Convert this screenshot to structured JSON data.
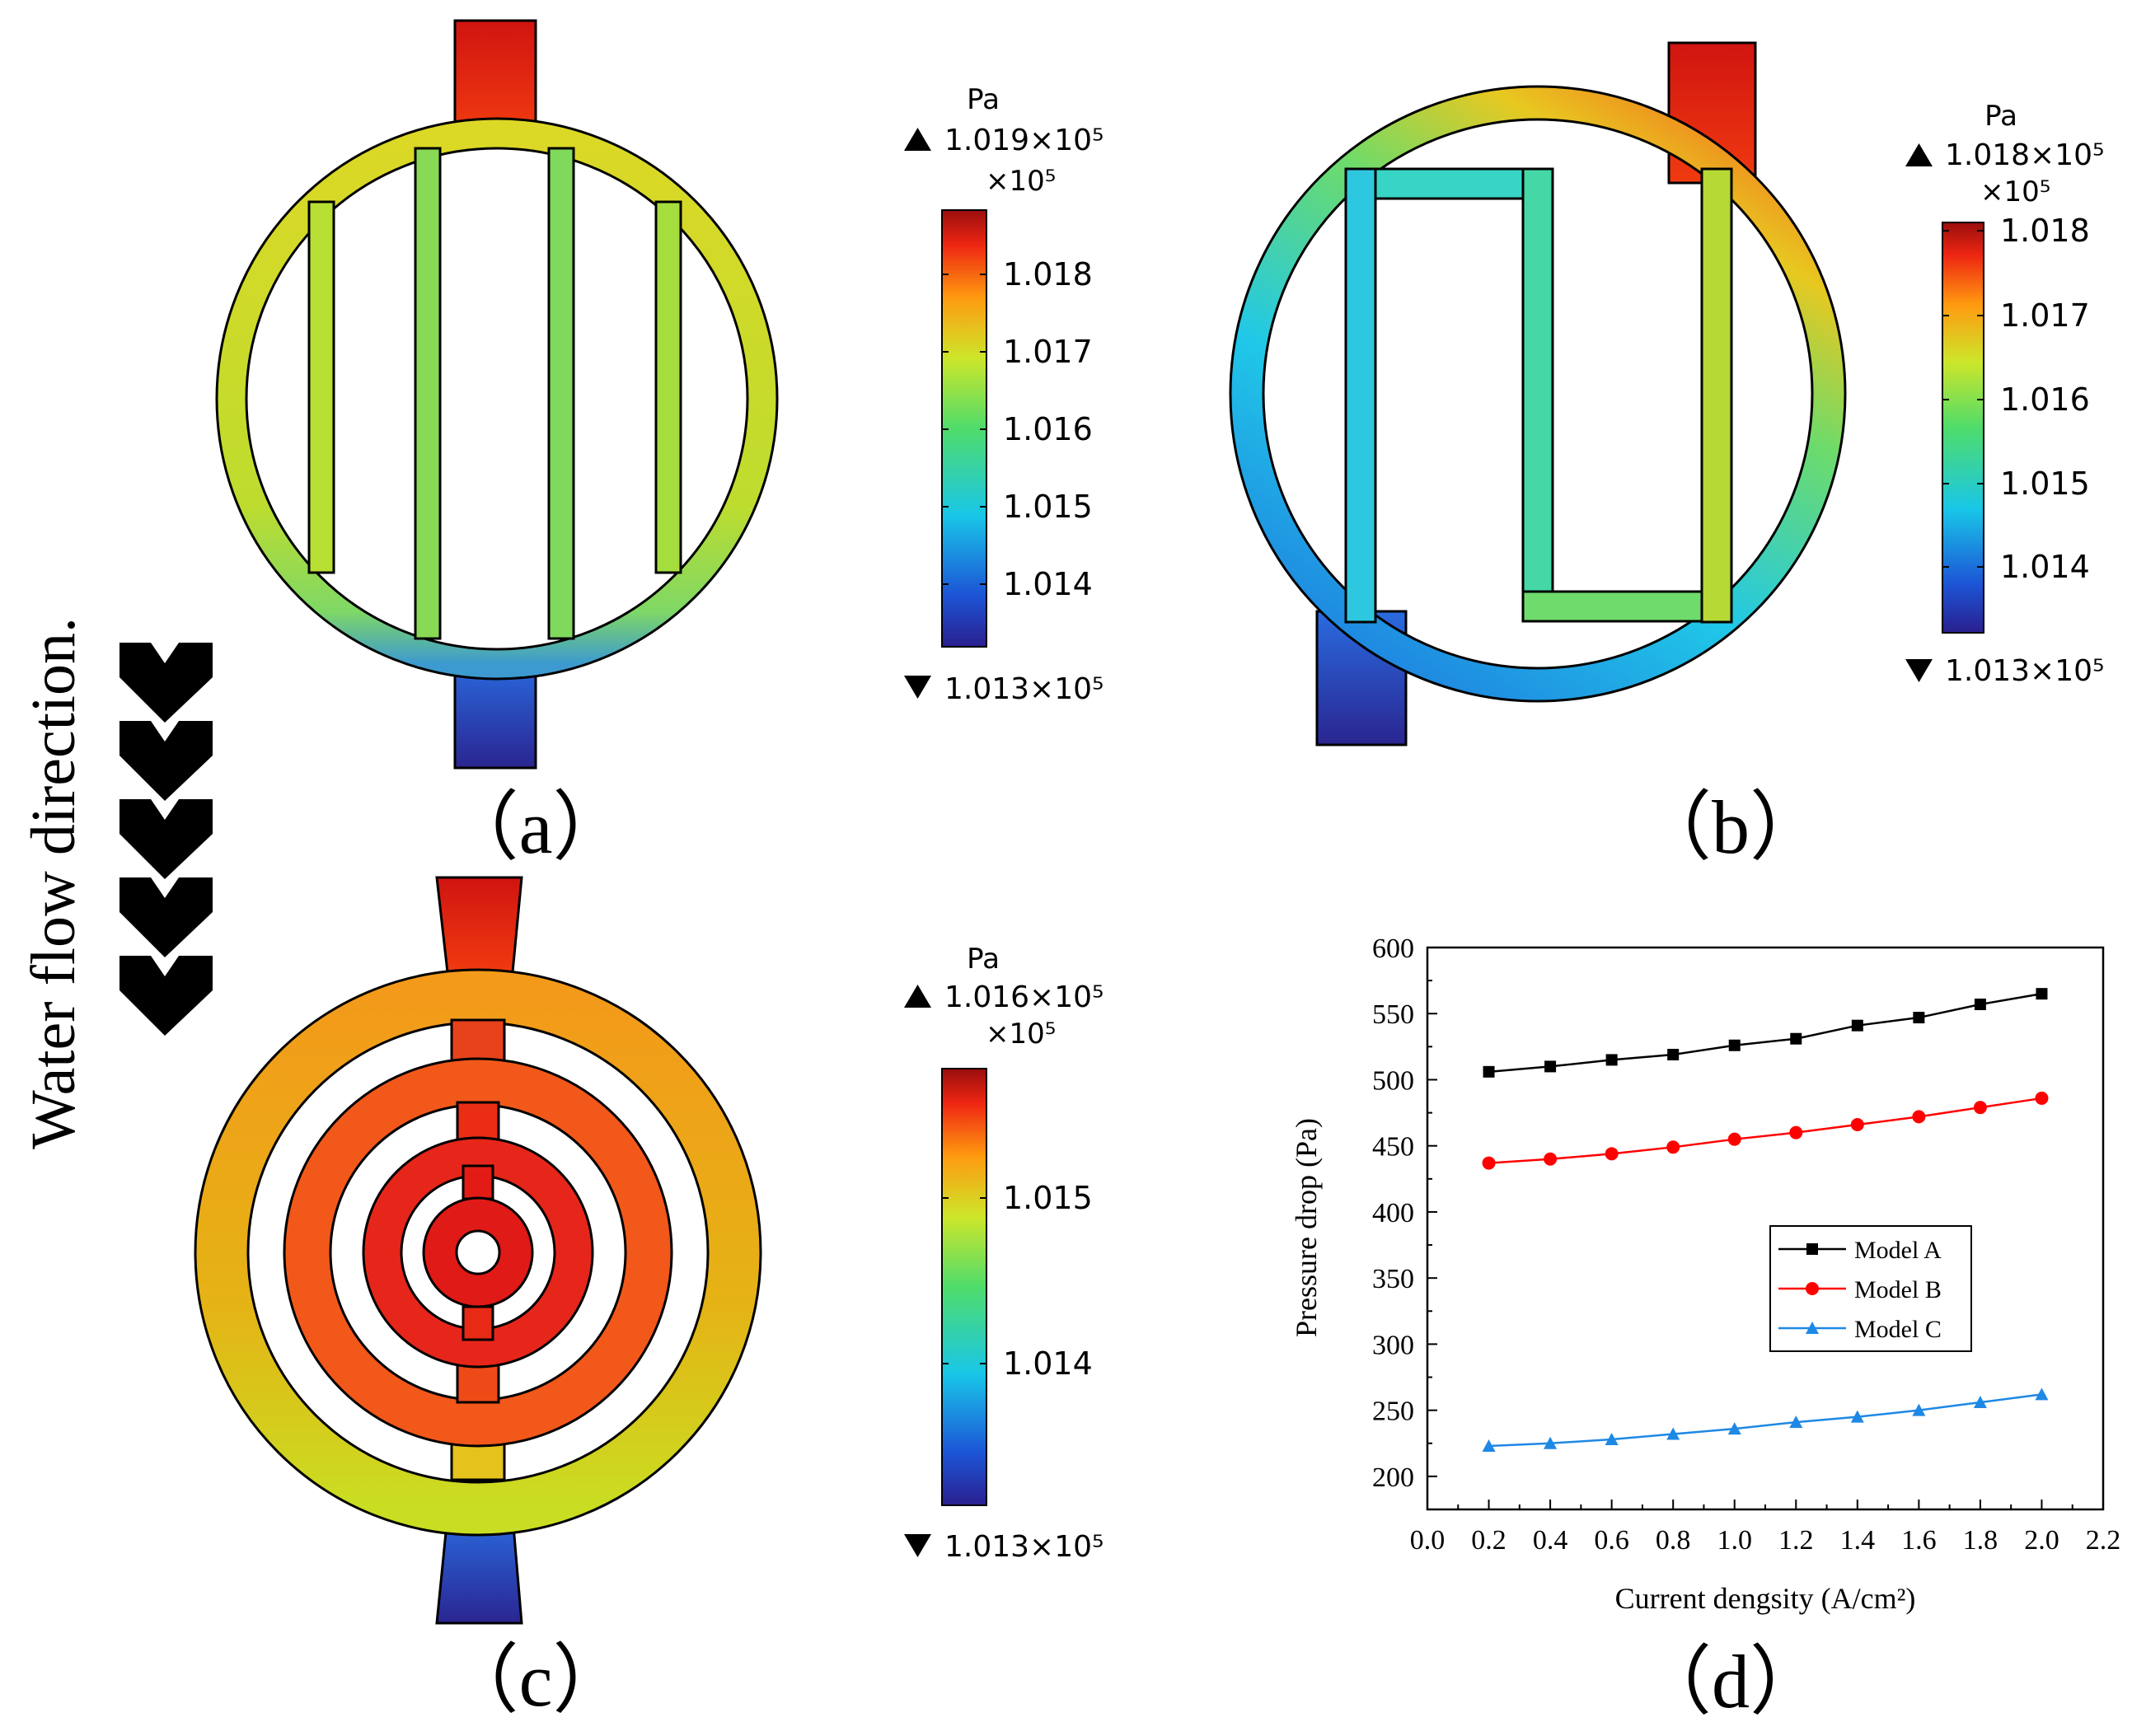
{
  "side_label": "Water flow direction.",
  "panels": {
    "a": {
      "label": "（a）",
      "legend": {
        "unit": "Pa",
        "max": "1.019×10⁵",
        "scale": "×10⁵",
        "ticks": [
          "1.018",
          "1.017",
          "1.016",
          "1.015",
          "1.014"
        ],
        "min": "1.013×10⁵"
      }
    },
    "b": {
      "label": "（b）",
      "legend": {
        "unit": "Pa",
        "max": "1.018×10⁵",
        "scale": "×10⁵",
        "ticks": [
          "1.018",
          "1.017",
          "1.016",
          "1.015",
          "1.014"
        ],
        "min": "1.013×10⁵"
      }
    },
    "c": {
      "label": "（c）",
      "legend": {
        "unit": "Pa",
        "max": "1.016×10⁵",
        "scale": "×10⁵",
        "ticks": [
          "1.015",
          "1.014"
        ],
        "min": "1.013×10⁵"
      }
    },
    "d": {
      "label": "（d）"
    }
  },
  "chart_data": {
    "type": "line",
    "title": "",
    "xlabel": "Current dengsity (A/cm²)",
    "ylabel": "Pressure drop (Pa)",
    "xlim": [
      0.0,
      2.2
    ],
    "ylim": [
      175,
      600
    ],
    "xticks": [
      "0.0",
      "0.2",
      "0.4",
      "0.6",
      "0.8",
      "1.0",
      "1.2",
      "1.4",
      "1.6",
      "1.8",
      "2.0",
      "2.2"
    ],
    "yticks": [
      "200",
      "250",
      "300",
      "350",
      "400",
      "450",
      "500",
      "550",
      "600"
    ],
    "x": [
      0.2,
      0.4,
      0.6,
      0.8,
      1.0,
      1.2,
      1.4,
      1.6,
      1.8,
      2.0
    ],
    "legend_position": "center-right",
    "series": [
      {
        "name": "Model A",
        "color": "#000000",
        "marker": "square",
        "values": [
          506,
          510,
          515,
          519,
          526,
          531,
          541,
          547,
          557,
          565
        ]
      },
      {
        "name": "Model B",
        "color": "#ff0000",
        "marker": "circle",
        "values": [
          437,
          440,
          444,
          449,
          455,
          460,
          466,
          472,
          479,
          486
        ]
      },
      {
        "name": "Model C",
        "color": "#1e88e5",
        "marker": "triangle",
        "values": [
          223,
          225,
          228,
          232,
          236,
          241,
          245,
          250,
          256,
          262
        ]
      }
    ]
  }
}
